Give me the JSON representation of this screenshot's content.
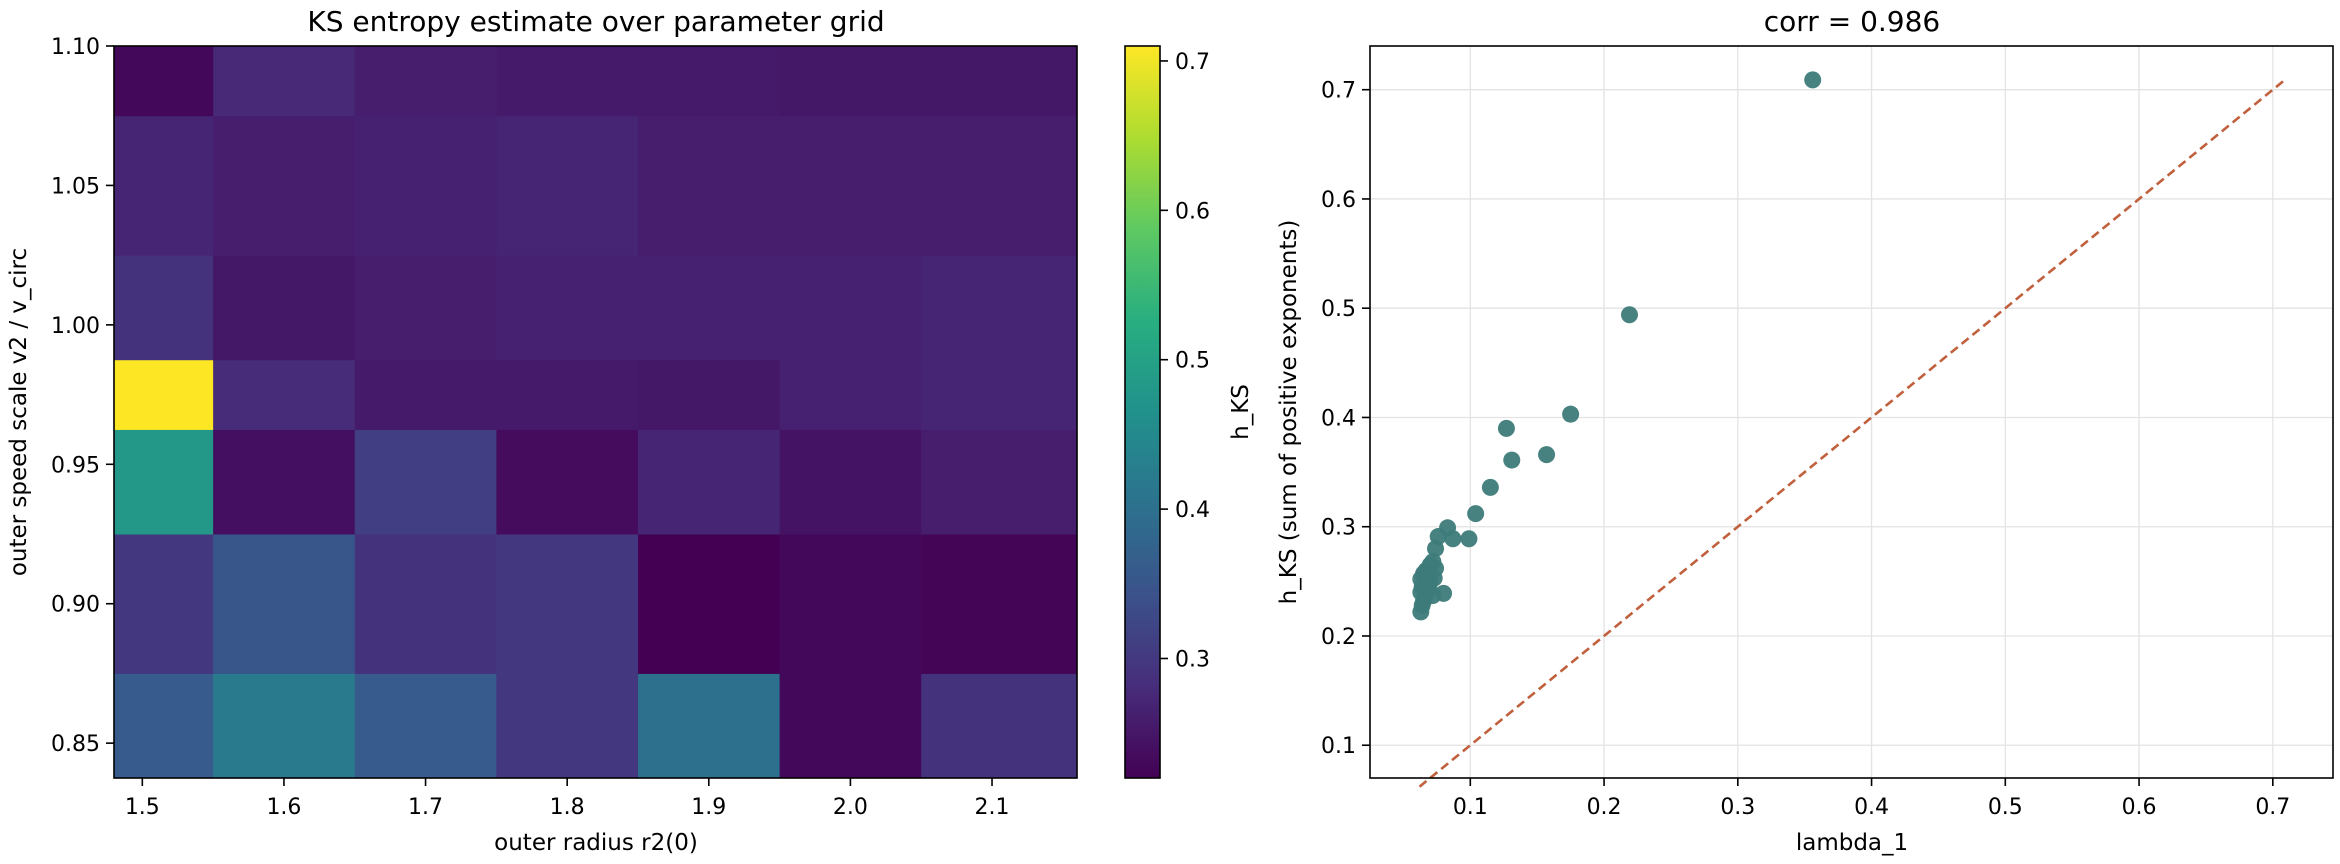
{
  "chart_data": [
    {
      "type": "heatmap",
      "title": "KS entropy estimate over parameter grid",
      "xlabel": "outer radius r2(0)",
      "ylabel": "outer speed scale v2 / v_circ",
      "x_categories": [
        1.5,
        1.6,
        1.7,
        1.8,
        1.9,
        2.0,
        2.1
      ],
      "y_categories": [
        0.85,
        0.9,
        0.95,
        0.975,
        1.0,
        1.05,
        1.1
      ],
      "xlim": [
        1.48,
        2.16
      ],
      "ylim": [
        0.8375,
        1.1
      ],
      "x_ticks": [
        "1.5",
        "1.6",
        "1.7",
        "1.8",
        "1.9",
        "2.0",
        "2.1"
      ],
      "y_ticks": [
        "0.85",
        "0.90",
        "0.95",
        "1.00",
        "1.05",
        "1.10"
      ],
      "values": [
        [
          0.36,
          0.42,
          0.36,
          0.3,
          0.4,
          0.23,
          0.29
        ],
        [
          0.3,
          0.35,
          0.29,
          0.3,
          0.22,
          0.23,
          0.225
        ],
        [
          0.48,
          0.24,
          0.31,
          0.235,
          0.27,
          0.245,
          0.26
        ],
        [
          0.71,
          0.28,
          0.255,
          0.255,
          0.25,
          0.265,
          0.27
        ],
        [
          0.29,
          0.25,
          0.26,
          0.265,
          0.265,
          0.265,
          0.27
        ],
        [
          0.27,
          0.26,
          0.265,
          0.27,
          0.26,
          0.26,
          0.26
        ],
        [
          0.23,
          0.275,
          0.26,
          0.255,
          0.255,
          0.25,
          0.25
        ]
      ],
      "colorbar": {
        "label": "h_KS",
        "range": [
          0.22,
          0.71
        ],
        "ticks": [
          "0.3",
          "0.4",
          "0.5",
          "0.6",
          "0.7"
        ],
        "tick_values": [
          0.3,
          0.4,
          0.5,
          0.6,
          0.7
        ],
        "colormap": "viridis"
      }
    },
    {
      "type": "scatter",
      "title": "corr = 0.986",
      "xlabel": "lambda_1",
      "ylabel": "h_KS (sum of positive exponents)",
      "xlim": [
        0.025,
        0.745
      ],
      "ylim": [
        0.07,
        0.74
      ],
      "x_ticks": [
        "0.1",
        "0.2",
        "0.3",
        "0.4",
        "0.5",
        "0.6",
        "0.7"
      ],
      "x_tick_values": [
        0.1,
        0.2,
        0.3,
        0.4,
        0.5,
        0.6,
        0.7
      ],
      "y_ticks": [
        "0.1",
        "0.2",
        "0.3",
        "0.4",
        "0.5",
        "0.6",
        "0.7"
      ],
      "y_tick_values": [
        0.1,
        0.2,
        0.3,
        0.4,
        0.5,
        0.6,
        0.7
      ],
      "grid": true,
      "point_color": "#3d7b7a",
      "line_color": "#c0603d",
      "points": [
        [
          0.356,
          0.709
        ],
        [
          0.219,
          0.494
        ],
        [
          0.175,
          0.403
        ],
        [
          0.157,
          0.366
        ],
        [
          0.127,
          0.39
        ],
        [
          0.131,
          0.361
        ],
        [
          0.115,
          0.336
        ],
        [
          0.104,
          0.312
        ],
        [
          0.083,
          0.299
        ],
        [
          0.087,
          0.289
        ],
        [
          0.099,
          0.289
        ],
        [
          0.076,
          0.291
        ],
        [
          0.074,
          0.28
        ],
        [
          0.08,
          0.239
        ],
        [
          0.072,
          0.268
        ],
        [
          0.074,
          0.262
        ],
        [
          0.07,
          0.265
        ],
        [
          0.067,
          0.26
        ],
        [
          0.068,
          0.255
        ],
        [
          0.065,
          0.257
        ],
        [
          0.073,
          0.253
        ],
        [
          0.07,
          0.25
        ],
        [
          0.066,
          0.25
        ],
        [
          0.063,
          0.252
        ],
        [
          0.064,
          0.245
        ],
        [
          0.069,
          0.245
        ],
        [
          0.063,
          0.24
        ],
        [
          0.067,
          0.238
        ],
        [
          0.072,
          0.237
        ],
        [
          0.065,
          0.232
        ],
        [
          0.064,
          0.228
        ],
        [
          0.063,
          0.222
        ]
      ],
      "reference_line": {
        "x": [
          0.062,
          0.709
        ],
        "y": [
          0.062,
          0.709
        ]
      }
    }
  ]
}
